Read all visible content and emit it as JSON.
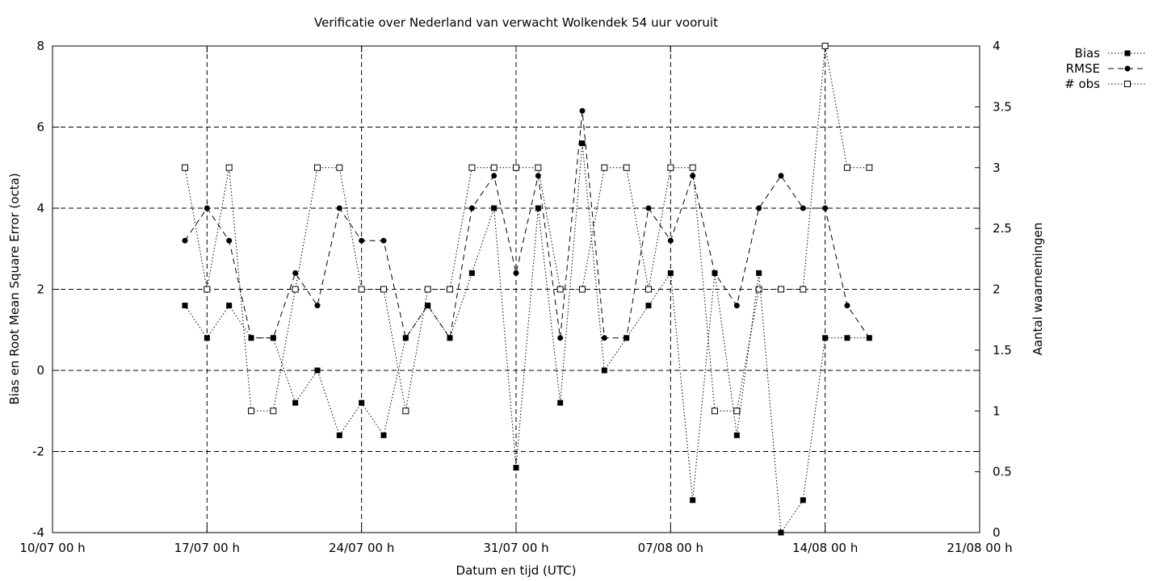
{
  "chart_data": {
    "type": "line",
    "title": "Verificatie over Nederland van verwacht Wolkendek 54 uur vooruit",
    "xlabel": "Datum en tijd (UTC)",
    "ylabel": "Bias en Root Mean Square Error (octa)",
    "y2label": "Aantal waarnemingen",
    "xlim": [
      "2023-07-10",
      "2023-08-21"
    ],
    "ylim": [
      -4,
      8
    ],
    "y2lim": [
      0,
      4
    ],
    "xticks": [
      "10/07 00 h",
      "17/07 00 h",
      "24/07 00 h",
      "31/07 00 h",
      "07/08 00 h",
      "14/08 00 h",
      "21/08 00 h"
    ],
    "yticks": [
      "-4",
      "-2",
      "0",
      "2",
      "4",
      "6",
      "8"
    ],
    "y2ticks": [
      "0",
      "0.5",
      "1",
      "1.5",
      "2",
      "2.5",
      "3",
      "3.5",
      "4"
    ],
    "grid": true,
    "legend_position": "top-right",
    "x": [
      "2023-07-16",
      "2023-07-17",
      "2023-07-18",
      "2023-07-19",
      "2023-07-20",
      "2023-07-21",
      "2023-07-22",
      "2023-07-23",
      "2023-07-24",
      "2023-07-25",
      "2023-07-26",
      "2023-07-27",
      "2023-07-28",
      "2023-07-29",
      "2023-07-30",
      "2023-07-31",
      "2023-08-01",
      "2023-08-02",
      "2023-08-03",
      "2023-08-04",
      "2023-08-05",
      "2023-08-06",
      "2023-08-07",
      "2023-08-08",
      "2023-08-09",
      "2023-08-10",
      "2023-08-11",
      "2023-08-12",
      "2023-08-13",
      "2023-08-14",
      "2023-08-15",
      "2023-08-16"
    ],
    "series": [
      {
        "name": "Bias",
        "axis": "left",
        "style": "dotted",
        "marker": "filled-square",
        "values": [
          1.6,
          0.8,
          1.6,
          0.8,
          0.8,
          -0.8,
          0,
          -1.6,
          -0.8,
          -1.6,
          0.8,
          1.6,
          0.8,
          2.4,
          4,
          -2.4,
          4,
          -0.8,
          5.6,
          0,
          0.8,
          1.6,
          2.4,
          -3.2,
          2.4,
          -1.6,
          2.4,
          -4,
          -3.2,
          0.8,
          0.8,
          0.8
        ]
      },
      {
        "name": "RMSE",
        "axis": "left",
        "style": "dashed",
        "marker": "filled-circle",
        "values": [
          3.2,
          4,
          3.2,
          0.8,
          0.8,
          2.4,
          1.6,
          4,
          3.2,
          3.2,
          0.8,
          1.6,
          0.8,
          4,
          4.8,
          2.4,
          4.8,
          0.8,
          6.4,
          0.8,
          0.8,
          4,
          3.2,
          4.8,
          2.4,
          1.6,
          4,
          4.8,
          4,
          4,
          1.6,
          0.8
        ]
      },
      {
        "name": "# obs",
        "axis": "right",
        "style": "dotted",
        "marker": "open-square",
        "values": [
          3,
          2,
          3,
          1,
          1,
          2,
          3,
          3,
          2,
          2,
          1,
          2,
          2,
          3,
          3,
          3,
          3,
          2,
          2,
          3,
          3,
          2,
          3,
          3,
          1,
          1,
          2,
          2,
          2,
          4,
          3,
          3
        ]
      }
    ]
  }
}
